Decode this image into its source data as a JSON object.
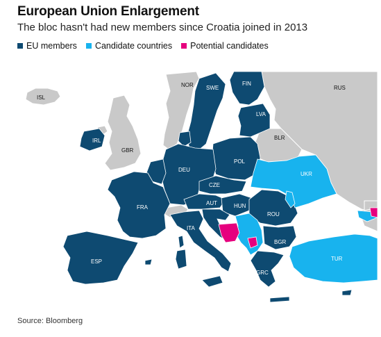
{
  "title": "European Union Enlargement",
  "subtitle": "The bloc hasn't had new members since Croatia joined in 2013",
  "legend": {
    "eu_members": "EU members",
    "candidates": "Candidate countries",
    "potential": "Potential candidates"
  },
  "colors": {
    "eu": "#0e4a71",
    "candidate": "#18b3ee",
    "potential": "#e6007e",
    "other": "#c9c9c9",
    "sea": "#ffffff"
  },
  "labels": {
    "isl": "ISL",
    "nor": "NOR",
    "swe": "SWE",
    "fin": "FIN",
    "rus": "RUS",
    "lva": "LVA",
    "irl": "IRL",
    "gbr": "GBR",
    "blr": "BLR",
    "deu": "DEU",
    "pol": "POL",
    "ukr": "UKR",
    "cze": "CZE",
    "fra": "FRA",
    "aut": "AUT",
    "hun": "HUN",
    "rou": "ROU",
    "ita": "ITA",
    "bgr": "BGR",
    "esp": "ESP",
    "tur": "TUR",
    "grc": "GRC"
  },
  "source": "Source: Bloomberg"
}
